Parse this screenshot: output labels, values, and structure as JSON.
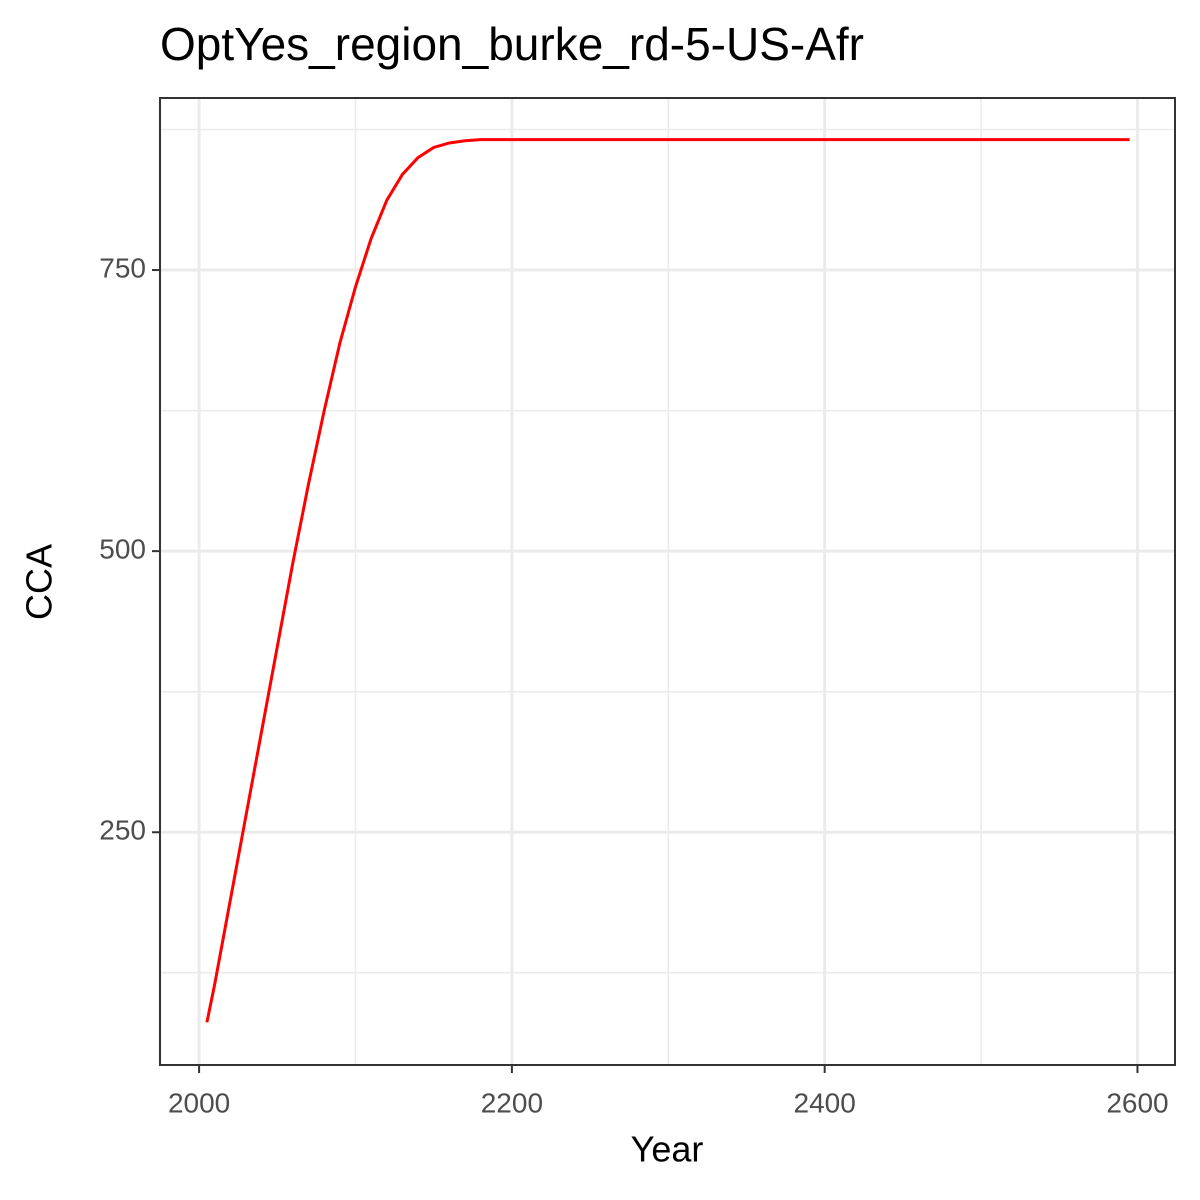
{
  "chart_data": {
    "type": "line",
    "title": "OptYes_region_burke_rd-5-US-Afr",
    "x_label": "Year",
    "y_label": "CCA",
    "x": [
      2005,
      2010,
      2020,
      2030,
      2040,
      2050,
      2060,
      2070,
      2080,
      2090,
      2100,
      2110,
      2120,
      2130,
      2140,
      2150,
      2160,
      2170,
      2180,
      2595
    ],
    "series": [
      {
        "name": "CCA",
        "color": "#ff0000",
        "values": [
          81,
          115,
          190,
          265,
          340,
          415,
          490,
          560,
          625,
          685,
          735,
          778,
          812,
          835,
          850,
          859,
          863,
          865,
          866,
          866
        ]
      }
    ],
    "xlim": [
      1975,
      2624
    ],
    "xticks": [
      2000,
      2200,
      2400,
      2600
    ],
    "x_minor_ticks": [
      2100,
      2300,
      2500
    ],
    "ylim": [
      43,
      903
    ],
    "yticks": [
      250,
      500,
      750
    ],
    "y_minor_ticks": [
      125,
      375,
      625,
      875
    ],
    "grid": true,
    "legend": false
  }
}
